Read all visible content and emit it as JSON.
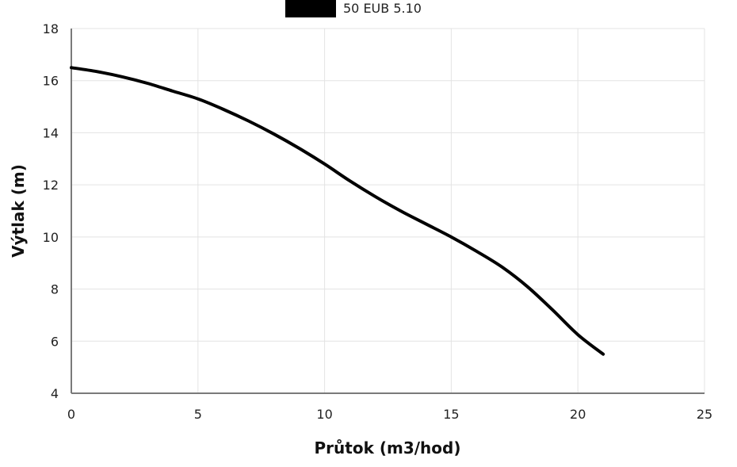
{
  "chart_data": {
    "type": "line",
    "legend": {
      "position": "top-center"
    },
    "xlabel": "Průtok (m3/hod)",
    "ylabel": "Výtlak (m)",
    "xlim": [
      0,
      25
    ],
    "ylim": [
      4,
      18
    ],
    "xticks": [
      0,
      5,
      10,
      15,
      20,
      25
    ],
    "yticks": [
      4,
      6,
      8,
      10,
      12,
      14,
      16,
      18
    ],
    "grid": true,
    "series": [
      {
        "name": "50 EUB 5.10",
        "color": "#000000",
        "x": [
          0,
          1,
          2,
          3,
          4,
          5,
          6,
          7,
          8,
          9,
          10,
          11,
          12,
          13,
          14,
          15,
          16,
          17,
          18,
          19,
          20,
          21
        ],
        "y": [
          16.5,
          16.35,
          16.15,
          15.9,
          15.6,
          15.3,
          14.9,
          14.45,
          13.95,
          13.4,
          12.8,
          12.15,
          11.55,
          11.0,
          10.5,
          10.0,
          9.45,
          8.85,
          8.1,
          7.2,
          6.25,
          5.5
        ]
      }
    ]
  }
}
